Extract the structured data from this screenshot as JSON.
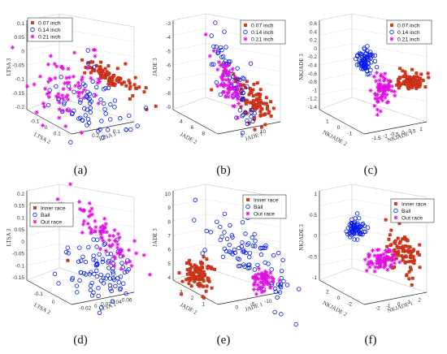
{
  "captions": [
    "(a)",
    "(b)",
    "(c)",
    "(d)",
    "(e)",
    "(f)"
  ],
  "colors": {
    "class1": "#d4180e",
    "class1_fill": "#b07a30",
    "class2": "#0018e8",
    "class3": "#e010e0"
  },
  "chart_data": [
    {
      "type": "scatter",
      "subtype": "3d-scatter",
      "caption": "(a)",
      "xlabel": "LTSA 1",
      "ylabel": "LTSA 2",
      "zlabel": "LTSA 3",
      "zticks": [
        "0.1",
        "0.05",
        "0",
        "-0.05",
        "-0.1",
        "-0.15",
        "-0.2"
      ],
      "xticks": [
        "0.2",
        "0.1"
      ],
      "yticks": [
        "-0.1",
        "0",
        "0.1"
      ],
      "legend": [
        "0.07 inch",
        "0.14 inch",
        "0.21 inch"
      ],
      "legend_position": "top-left",
      "series": [
        {
          "name": "0.07 inch",
          "marker": "square-star",
          "clusters": [
            {
              "center": [
                0.06,
                -0.02,
                0.01
              ],
              "spread": [
                0.015,
                0.02,
                0.04
              ],
              "count": 90
            }
          ]
        },
        {
          "name": "0.14 inch",
          "marker": "circle",
          "clusters": [
            {
              "center": [
                0.06,
                -0.05,
                -0.08
              ],
              "spread": [
                0.03,
                0.08,
                0.08
              ],
              "count": 70
            }
          ]
        },
        {
          "name": "0.21 inch",
          "marker": "star",
          "clusters": [
            {
              "center": [
                0.12,
                -0.1,
                -0.02
              ],
              "spread": [
                0.03,
                0.06,
                0.06
              ],
              "count": 70
            }
          ]
        }
      ]
    },
    {
      "type": "scatter",
      "subtype": "3d-scatter",
      "caption": "(b)",
      "xlabel": "JADE 1",
      "ylabel": "JADE 2",
      "zlabel": "JADE 3",
      "zticks": [
        "-3",
        "-4",
        "-5",
        "-6",
        "-7",
        "-8",
        "-9"
      ],
      "xticks": [
        "5",
        "10"
      ],
      "yticks": [
        "4",
        "6",
        "8"
      ],
      "legend": [
        "0.07 inch",
        "0.14 inch",
        "0.21 inch"
      ],
      "legend_position": "top-right",
      "series": [
        {
          "name": "0.07 inch",
          "marker": "square-star",
          "clusters": [
            {
              "center": [
                9,
                7.5,
                -6
              ],
              "spread": [
                1,
                0.5,
                0.8
              ],
              "count": 90
            }
          ]
        },
        {
          "name": "0.14 inch",
          "marker": "circle",
          "clusters": [
            {
              "center": [
                7,
                6,
                -5
              ],
              "spread": [
                1.5,
                0.8,
                1.5
              ],
              "count": 70
            }
          ]
        },
        {
          "name": "0.21 inch",
          "marker": "star",
          "clusters": [
            {
              "center": [
                7,
                6,
                -4.5
              ],
              "spread": [
                1,
                0.6,
                1
              ],
              "count": 70
            }
          ]
        }
      ]
    },
    {
      "type": "scatter",
      "subtype": "3d-scatter",
      "caption": "(c)",
      "xlabel": "NKJADE 1",
      "ylabel": "NKJADE 2",
      "zlabel": "NKJADE 3",
      "zticks": [
        "0.6",
        "0.4",
        "0.2",
        "0",
        "-0.2",
        "-0.4",
        "-0.6",
        "-0.8",
        "-1",
        "-1.2",
        "-1.4"
      ],
      "xticks": [
        "-1.5",
        "-1",
        "-0.5",
        "0",
        "0.5",
        "1"
      ],
      "yticks": [
        "1",
        "0",
        "-1"
      ],
      "legend": [
        "0.07 inch",
        "0.14 inch",
        "0.21 inch"
      ],
      "legend_position": "top-right",
      "series": [
        {
          "name": "0.07 inch",
          "marker": "square-star",
          "clusters": [
            {
              "center": [
                0.5,
                0.5,
                -0.3
              ],
              "spread": [
                0.15,
                0.15,
                0.1
              ],
              "count": 90
            }
          ]
        },
        {
          "name": "0.14 inch",
          "marker": "circle",
          "clusters": [
            {
              "center": [
                -1,
                -0.5,
                0.3
              ],
              "spread": [
                0.1,
                0.1,
                0.1
              ],
              "count": 70
            }
          ]
        },
        {
          "name": "0.21 inch",
          "marker": "star",
          "clusters": [
            {
              "center": [
                0,
                0,
                -0.6
              ],
              "spread": [
                0.15,
                0.15,
                0.15
              ],
              "count": 70
            }
          ]
        }
      ]
    },
    {
      "type": "scatter",
      "subtype": "3d-scatter",
      "caption": "(d)",
      "xlabel": "LTSA 1",
      "ylabel": "LTSA 2",
      "zlabel": "LTSA 3",
      "zticks": [
        "0.2",
        "0.15",
        "0.1",
        "0.05",
        "0",
        "-0.05",
        "-0.1",
        "-0.15"
      ],
      "xticks": [
        "-0.02",
        "0",
        "0.02",
        "0.04",
        "0.06"
      ],
      "yticks": [
        "-0.1",
        "0"
      ],
      "legend": [
        "Inner race",
        "Ball",
        "Out race"
      ],
      "legend_position": "top-left",
      "series": [
        {
          "name": "Inner race",
          "marker": "square-star",
          "clusters": [
            {
              "center": [
                -0.01,
                -0.05,
                0.0
              ],
              "spread": [
                0.001,
                0.001,
                0.001
              ],
              "count": 1
            }
          ]
        },
        {
          "name": "Ball",
          "marker": "circle",
          "clusters": [
            {
              "center": [
                0.02,
                -0.02,
                -0.05
              ],
              "spread": [
                0.02,
                0.03,
                0.05
              ],
              "count": 90
            }
          ]
        },
        {
          "name": "Out race",
          "marker": "star",
          "clusters": [
            {
              "center": [
                0.03,
                0.0,
                0.1
              ],
              "spread": [
                0.02,
                0.03,
                0.06
              ],
              "count": 80
            }
          ]
        }
      ]
    },
    {
      "type": "scatter",
      "subtype": "3d-scatter",
      "caption": "(e)",
      "xlabel": "JADE 1",
      "ylabel": "JADE 2",
      "zlabel": "JADE 3",
      "zticks": [
        "10",
        "9",
        "8",
        "7",
        "6",
        "5",
        "4"
      ],
      "xticks": [
        "0",
        "-5",
        "-10"
      ],
      "yticks": [
        "3",
        "2",
        "1"
      ],
      "legend": [
        "Inner race",
        "Ball",
        "Out race"
      ],
      "legend_position": "top-right",
      "series": [
        {
          "name": "Inner race",
          "marker": "square-star",
          "clusters": [
            {
              "center": [
                -5,
                2.5,
                5.5
              ],
              "spread": [
                1,
                0.3,
                0.6
              ],
              "count": 90
            }
          ]
        },
        {
          "name": "Ball",
          "marker": "circle",
          "clusters": [
            {
              "center": [
                -3,
                1.8,
                7.5
              ],
              "spread": [
                2,
                0.4,
                1.5
              ],
              "count": 90
            }
          ]
        },
        {
          "name": "Out race",
          "marker": "star",
          "clusters": [
            {
              "center": [
                -2,
                1.5,
                5.5
              ],
              "spread": [
                1,
                0.3,
                0.5
              ],
              "count": 60
            }
          ]
        }
      ]
    },
    {
      "type": "scatter",
      "subtype": "3d-scatter",
      "caption": "(f)",
      "xlabel": "NKJADE 1",
      "ylabel": "NKJADE 2",
      "zlabel": "NKJADE 3",
      "zticks": [
        "1",
        "0.5",
        "0",
        "-0.5",
        "-1"
      ],
      "xticks": [
        "-2",
        "-1",
        "0",
        "1",
        "2"
      ],
      "yticks": [
        "2",
        "0",
        "-2"
      ],
      "legend": [
        "Inner race",
        "Ball",
        "Out race"
      ],
      "legend_position": "top-right",
      "series": [
        {
          "name": "Inner race",
          "marker": "square-star",
          "clusters": [
            {
              "center": [
                1,
                1,
                0.0
              ],
              "spread": [
                0.3,
                0.3,
                0.3
              ],
              "count": 90
            }
          ]
        },
        {
          "name": "Ball",
          "marker": "circle",
          "clusters": [
            {
              "center": [
                -1.5,
                -1,
                0.8
              ],
              "spread": [
                0.2,
                0.2,
                0.12
              ],
              "count": 70
            }
          ]
        },
        {
          "name": "Out race",
          "marker": "star",
          "clusters": [
            {
              "center": [
                0,
                0,
                -0.4
              ],
              "spread": [
                0.3,
                0.3,
                0.2
              ],
              "count": 70
            }
          ]
        }
      ]
    }
  ]
}
